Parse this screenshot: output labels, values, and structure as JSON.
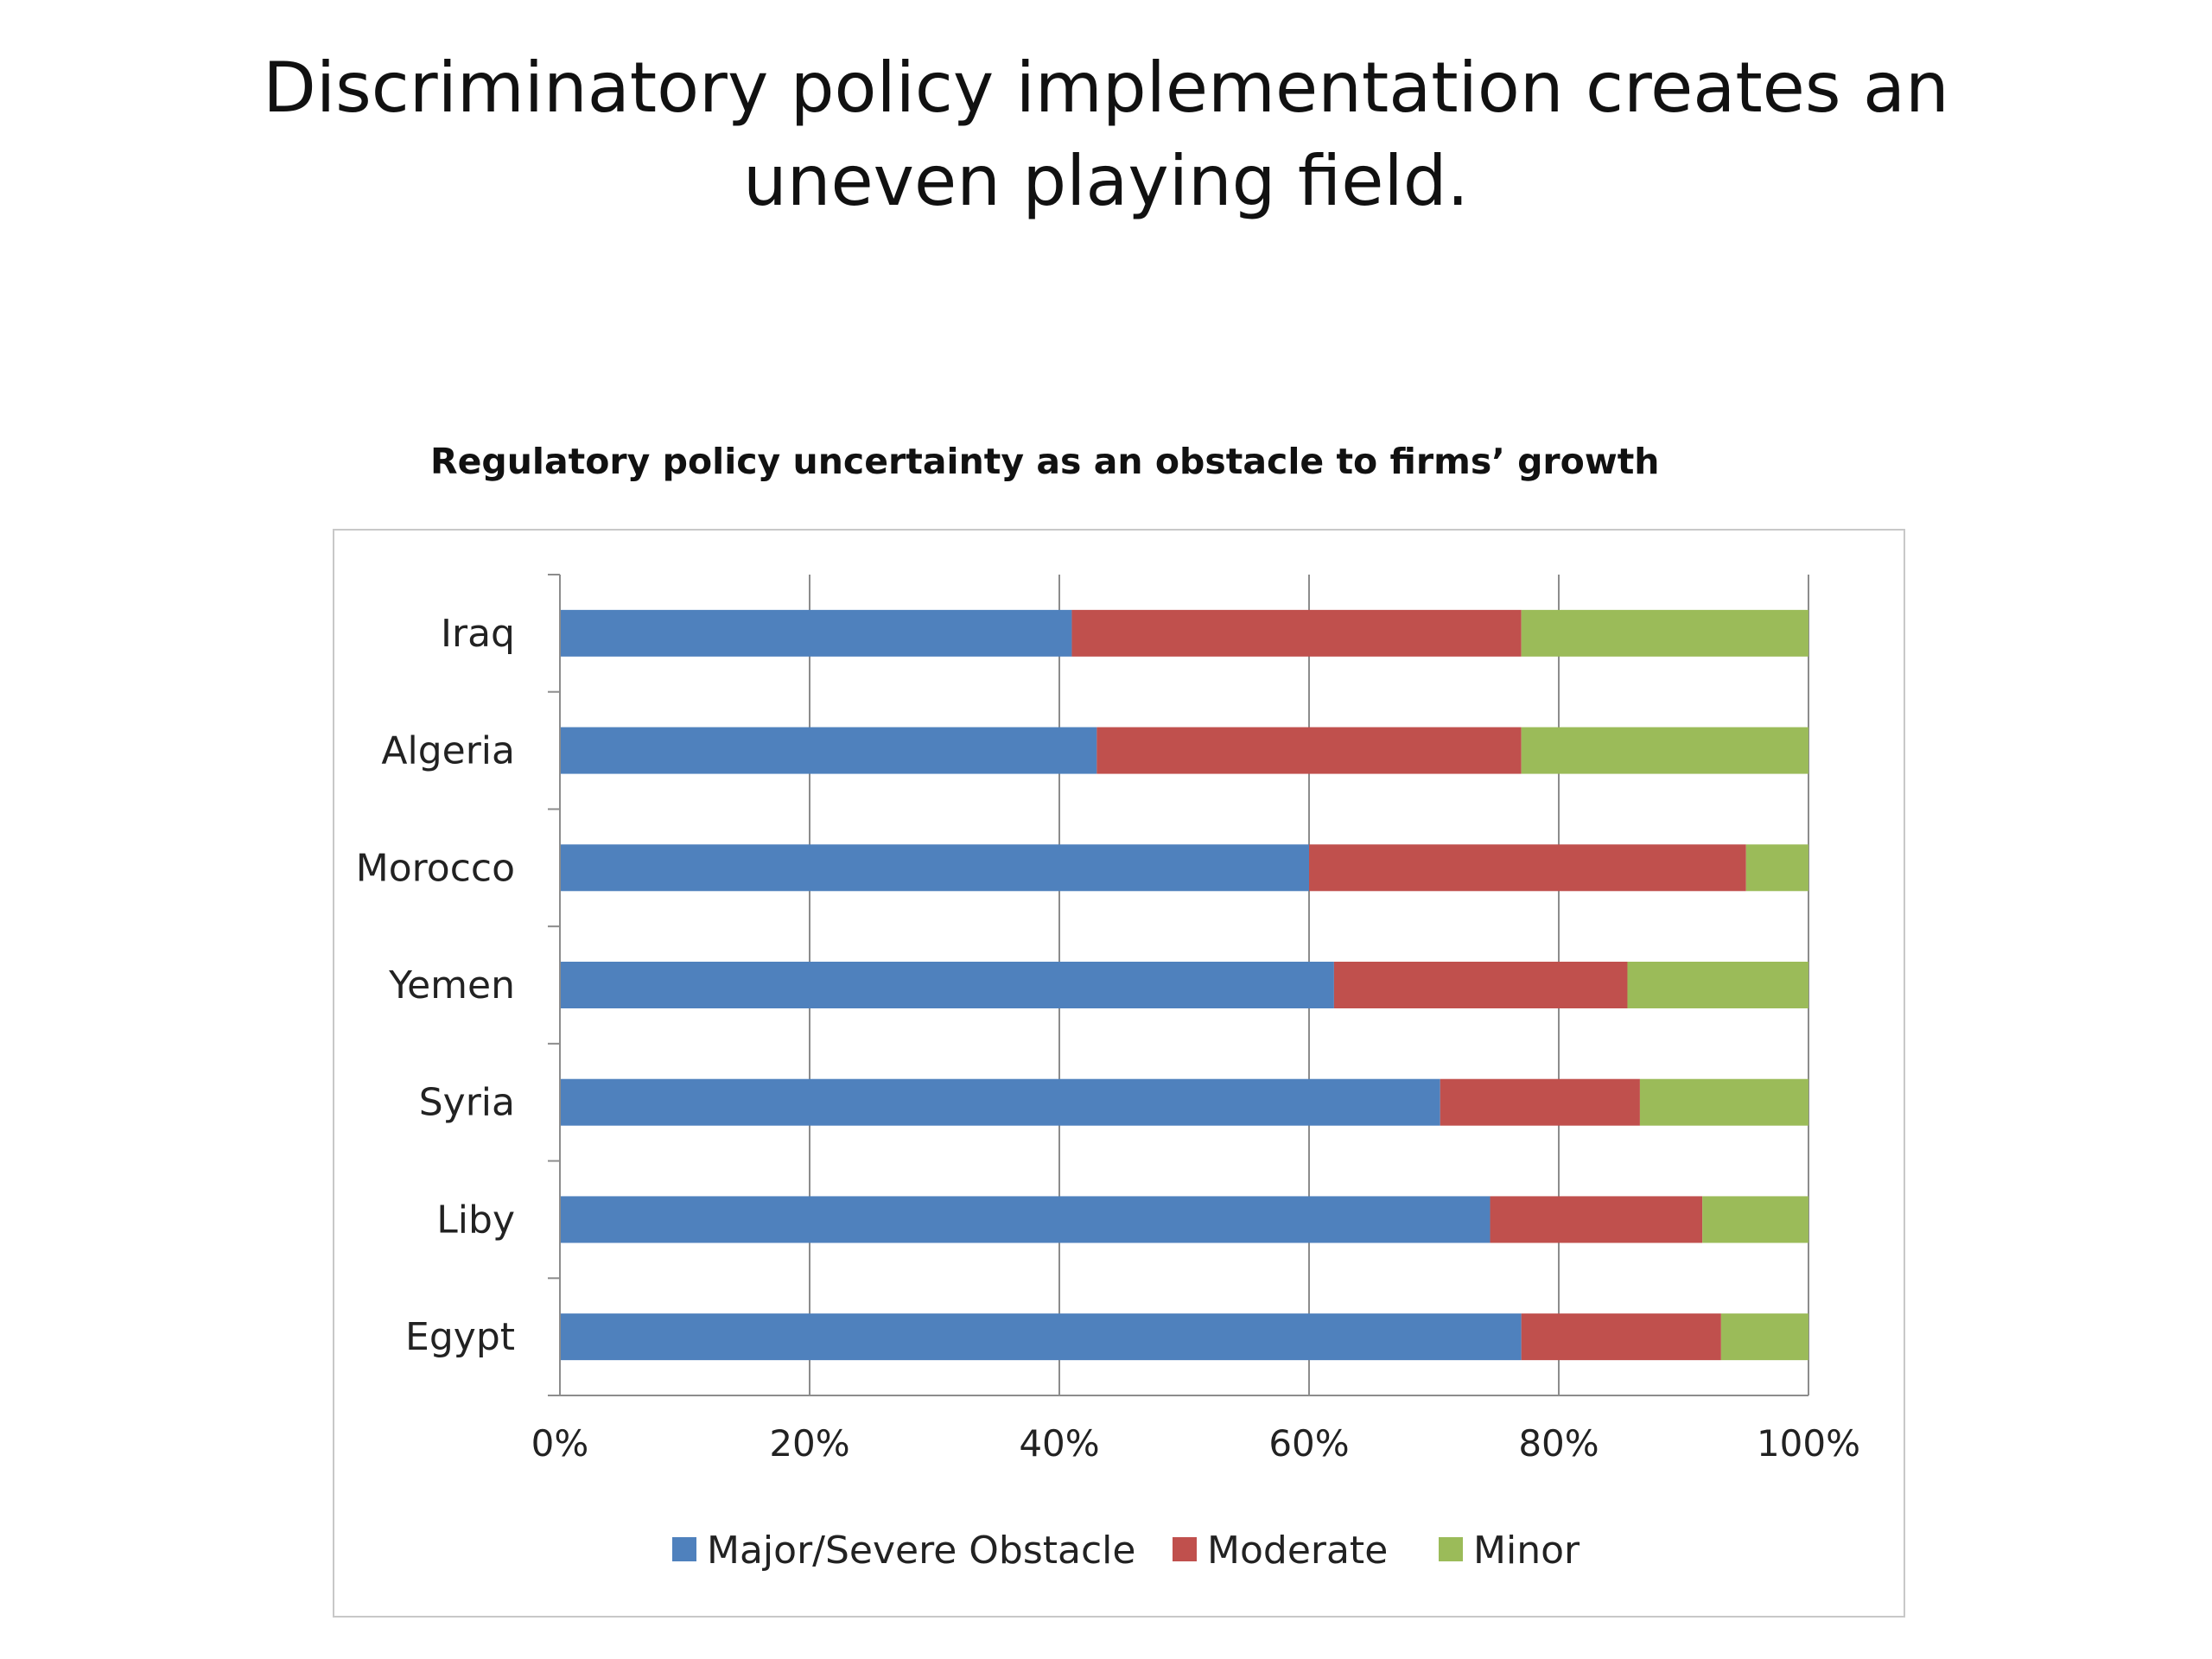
{
  "slide": {
    "title": "Discriminatory policy implementation creates an uneven playing field."
  },
  "chart_data": {
    "type": "bar",
    "orientation": "horizontal",
    "stacked": true,
    "title": "Regulatory policy uncertainty as an obstacle to firms’ growth",
    "categories": [
      "Iraq",
      "Algeria",
      "Morocco",
      "Yemen",
      "Syria",
      "Liby",
      "Egypt"
    ],
    "series": [
      {
        "name": "Major/Severe Obstacle",
        "color": "#4f81bd",
        "values": [
          41,
          43,
          60,
          62,
          70.5,
          74.5,
          77
        ]
      },
      {
        "name": "Moderate",
        "color": "#c0504d",
        "values": [
          36,
          34,
          35,
          23.5,
          16,
          17,
          16
        ]
      },
      {
        "name": "Minor",
        "color": "#9bbb59",
        "values": [
          23,
          23,
          5,
          14.5,
          13.5,
          8.5,
          7
        ]
      }
    ],
    "xlim": [
      0,
      100
    ],
    "xticks": [
      "0%",
      "20%",
      "40%",
      "60%",
      "80%",
      "100%"
    ],
    "xlabel": "",
    "ylabel": "",
    "grid": "vertical",
    "legend": "bottom"
  }
}
